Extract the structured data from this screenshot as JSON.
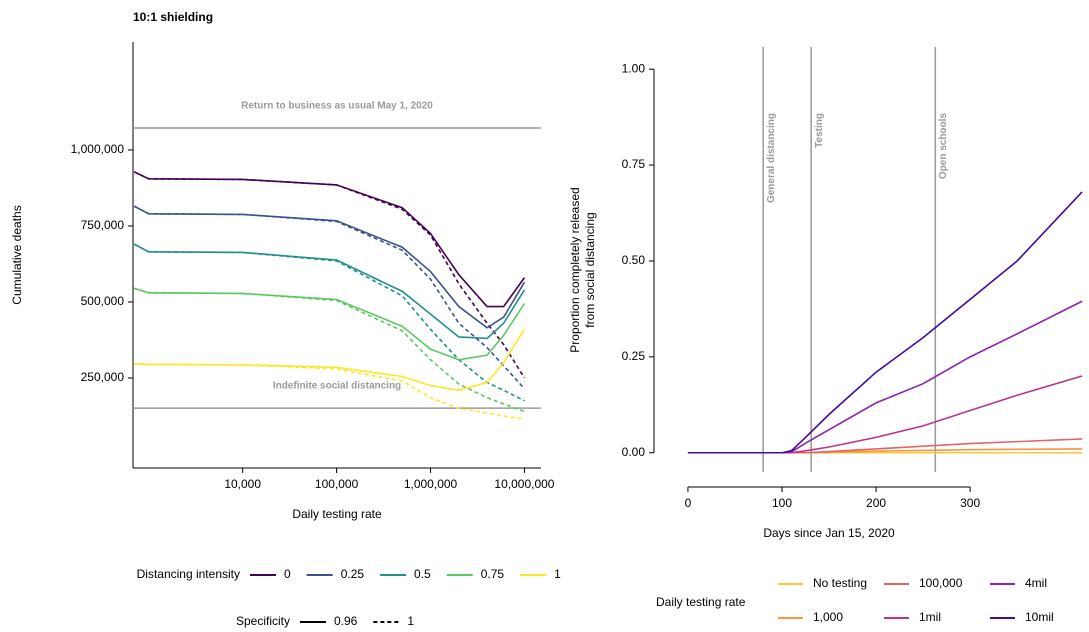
{
  "chart_data": [
    {
      "type": "line",
      "title": "10:1 shielding",
      "x_label": "Daily testing rate",
      "y_label": "Cumulative deaths",
      "x_log": true,
      "x": [
        700,
        1000,
        10000,
        100000,
        500000,
        1000000,
        2000000,
        4000000,
        6000000,
        10000000
      ],
      "xlim": [
        680,
        15000000
      ],
      "xticks": [
        {
          "value": 10000,
          "label": "10,000"
        },
        {
          "value": 100000,
          "label": "100,000"
        },
        {
          "value": 1000000,
          "label": "1,000,000"
        },
        {
          "value": 10000000,
          "label": "10,000,000"
        }
      ],
      "ylim": [
        -46000,
        1355000
      ],
      "yticks": [
        {
          "value": 250000,
          "label": "250,000"
        },
        {
          "value": 500000,
          "label": "500,000"
        },
        {
          "value": 750000,
          "label": "750,000"
        },
        {
          "value": 1000000,
          "label": "1,000,000"
        }
      ],
      "hlines": [
        {
          "value": 1072000,
          "label": "Return to business as usual May 1, 2020"
        },
        {
          "value": 151000,
          "label": "Indefinite social distancing"
        }
      ],
      "series": [
        {
          "color": "#440154",
          "dash": false,
          "values": [
            928000,
            905000,
            903000,
            885000,
            810000,
            725000,
            590000,
            485000,
            485000,
            580000
          ]
        },
        {
          "color": "#440154",
          "dash": true,
          "values": [
            928000,
            905000,
            903000,
            885000,
            805000,
            720000,
            560000,
            430000,
            360000,
            250000
          ]
        },
        {
          "color": "#3b528b",
          "dash": false,
          "values": [
            815000,
            790000,
            788000,
            767000,
            680000,
            600000,
            485000,
            415000,
            450000,
            565000
          ]
        },
        {
          "color": "#3b528b",
          "dash": true,
          "values": [
            815000,
            790000,
            788000,
            765000,
            670000,
            575000,
            430000,
            350000,
            290000,
            215000
          ]
        },
        {
          "color": "#21908c",
          "dash": false,
          "values": [
            690000,
            665000,
            663000,
            638000,
            535000,
            460000,
            385000,
            380000,
            430000,
            540000
          ]
        },
        {
          "color": "#21908c",
          "dash": true,
          "values": [
            690000,
            665000,
            663000,
            635000,
            520000,
            410000,
            310000,
            235000,
            210000,
            175000
          ]
        },
        {
          "color": "#5dc863",
          "dash": false,
          "values": [
            545000,
            530000,
            528000,
            508000,
            420000,
            345000,
            310000,
            325000,
            390000,
            495000
          ]
        },
        {
          "color": "#5dc863",
          "dash": true,
          "values": [
            545000,
            530000,
            528000,
            505000,
            405000,
            310000,
            230000,
            185000,
            165000,
            140000
          ]
        },
        {
          "color": "#fde725",
          "dash": false,
          "values": [
            297000,
            295000,
            293000,
            285000,
            255000,
            225000,
            210000,
            235000,
            300000,
            410000
          ]
        },
        {
          "color": "#fde725",
          "dash": true,
          "values": [
            297000,
            295000,
            293000,
            280000,
            240000,
            185000,
            150000,
            135000,
            125000,
            115000
          ]
        }
      ],
      "legends": [
        {
          "title": "Distancing intensity",
          "items": [
            {
              "label": "0",
              "color": "#440154"
            },
            {
              "label": "0.25",
              "color": "#3b528b"
            },
            {
              "label": "0.5",
              "color": "#21908c"
            },
            {
              "label": "0.75",
              "color": "#5dc863"
            },
            {
              "label": "1",
              "color": "#fde725"
            }
          ]
        },
        {
          "title": "Specificity",
          "items": [
            {
              "label": "0.96",
              "color": "#000000",
              "dash": false
            },
            {
              "label": "1",
              "color": "#000000",
              "dash": true
            }
          ]
        }
      ]
    },
    {
      "type": "line",
      "x_label": "Days since Jan 15, 2020",
      "y_label": [
        "Proportion completely released",
        "from social distancing"
      ],
      "x_log": false,
      "x": [
        0,
        100,
        110,
        125,
        150,
        200,
        250,
        300,
        350,
        419
      ],
      "xlim": [
        -18,
        420
      ],
      "xticks": [
        0,
        100,
        200,
        300
      ],
      "ylim": [
        -0.045,
        1.05
      ],
      "yticks": [
        {
          "value": 0,
          "label": "0.00"
        },
        {
          "value": 0.25,
          "label": "0.25"
        },
        {
          "value": 0.5,
          "label": "0.50"
        },
        {
          "value": 0.75,
          "label": "0.75"
        },
        {
          "value": 1,
          "label": "1.00"
        }
      ],
      "vlines": [
        {
          "value": 80,
          "label": "General distancing"
        },
        {
          "value": 131,
          "label": "Testing"
        },
        {
          "value": 263,
          "label": "Open schools"
        }
      ],
      "legend_title": "Daily testing rate",
      "series": [
        {
          "name": "No testing",
          "color": "#f9c933",
          "values": [
            0,
            0,
            0,
            0,
            0,
            0,
            0,
            0,
            0,
            0
          ]
        },
        {
          "name": "1,000",
          "color": "#f8953d",
          "values": [
            0,
            0,
            0,
            0,
            0.001,
            0.004,
            0.006,
            0.008,
            0.009,
            0.01
          ]
        },
        {
          "name": "100,000",
          "color": "#e06664",
          "values": [
            0,
            0,
            0,
            0,
            0.003,
            0.01,
            0.017,
            0.024,
            0.029,
            0.036
          ]
        },
        {
          "name": "1mil",
          "color": "#bb3488",
          "values": [
            0,
            0,
            0,
            0.005,
            0.015,
            0.04,
            0.07,
            0.11,
            0.15,
            0.2
          ]
        },
        {
          "name": "4mil",
          "color": "#8b22b0",
          "values": [
            0,
            0,
            0.002,
            0.025,
            0.06,
            0.13,
            0.18,
            0.25,
            0.31,
            0.395
          ]
        },
        {
          "name": "10mil",
          "color": "#3f0a9e",
          "values": [
            0,
            0,
            0.005,
            0.04,
            0.1,
            0.21,
            0.3,
            0.4,
            0.5,
            0.68
          ]
        }
      ]
    }
  ]
}
